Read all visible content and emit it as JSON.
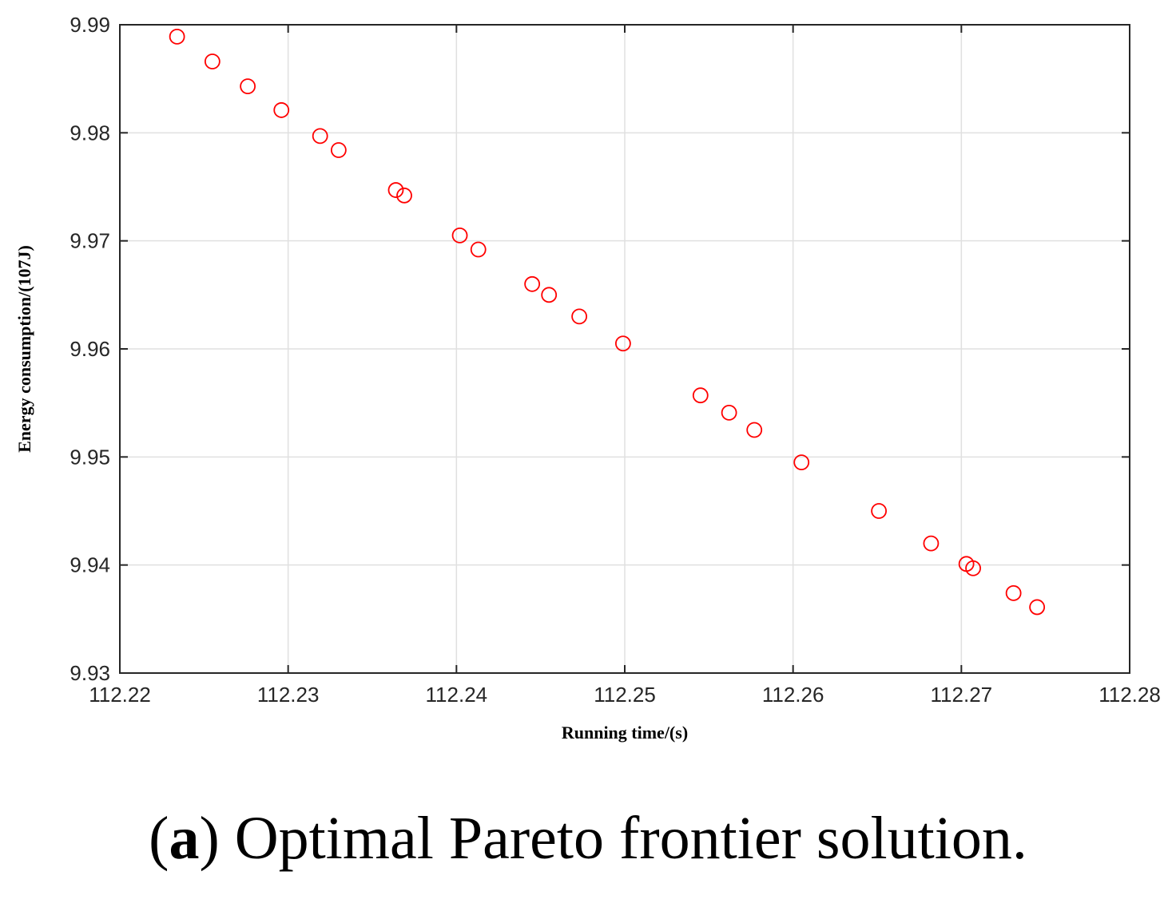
{
  "caption": {
    "open_paren": "(",
    "letter": "a",
    "text": ") Optimal Pareto frontier solution."
  },
  "chart_data": {
    "type": "scatter",
    "xlabel": "Running time/(s)",
    "ylabel": "Energy consumption/(107J)",
    "xlim": [
      112.22,
      112.28
    ],
    "ylim": [
      9.93,
      9.99
    ],
    "xticks": [
      "112.22",
      "112.23",
      "112.24",
      "112.25",
      "112.26",
      "112.27",
      "112.28"
    ],
    "yticks": [
      "9.93",
      "9.94",
      "9.95",
      "9.96",
      "9.97",
      "9.98",
      "9.99"
    ],
    "grid": true,
    "marker": "open-circle",
    "marker_color": "#ff0000",
    "x": [
      112.2234,
      112.2255,
      112.2276,
      112.2296,
      112.2319,
      112.233,
      112.2364,
      112.2369,
      112.2402,
      112.2413,
      112.2445,
      112.2455,
      112.2473,
      112.2499,
      112.2545,
      112.2562,
      112.2577,
      112.2605,
      112.2651,
      112.2682,
      112.2703,
      112.2707,
      112.2731,
      112.2745
    ],
    "y": [
      9.9889,
      9.9866,
      9.9843,
      9.9821,
      9.9797,
      9.9784,
      9.9747,
      9.9742,
      9.9705,
      9.9692,
      9.966,
      9.965,
      9.963,
      9.9605,
      9.9557,
      9.9541,
      9.9525,
      9.9495,
      9.945,
      9.942,
      9.9401,
      9.9397,
      9.9374,
      9.9361
    ]
  }
}
